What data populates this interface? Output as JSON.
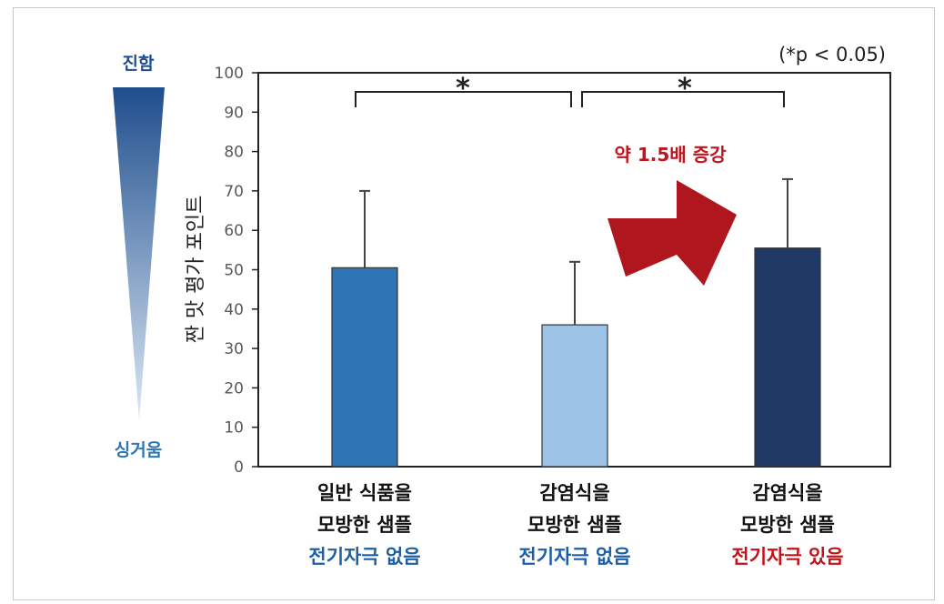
{
  "chart_data": {
    "type": "bar",
    "ylabel": "짠 맛 평가 포인트",
    "ylim": [
      0,
      100
    ],
    "yticks": [
      0,
      10,
      20,
      30,
      40,
      50,
      60,
      70,
      80,
      90,
      100
    ],
    "significance_note": "(*p < 0.05)",
    "categories": [
      {
        "line1": "일반 식품을",
        "line2": "모방한 샘플",
        "line3": "전기자극 없음",
        "line3_color": "#1f5fa6"
      },
      {
        "line1": "감염식을",
        "line2": "모방한 샘플",
        "line3": "전기자극 없음",
        "line3_color": "#1f5fa6"
      },
      {
        "line1": "감염식을",
        "line2": "모방한 샘플",
        "line3": "전기자극 있음",
        "line3_color": "#c0141c"
      }
    ],
    "values": [
      50.5,
      36,
      55.5
    ],
    "error_upper": [
      70,
      52,
      73
    ],
    "bar_colors": [
      "#2e75b6",
      "#9dc3e6",
      "#1f3864"
    ],
    "significance_marks": [
      "*",
      "*"
    ],
    "increase_label": "약 1.5배 증강",
    "increase_color": "#c0141c"
  },
  "scale": {
    "top_label": "진함",
    "bottom_label": "싱거움",
    "top_color": "#1f4e8c",
    "bottom_color": "#2e75b6"
  }
}
